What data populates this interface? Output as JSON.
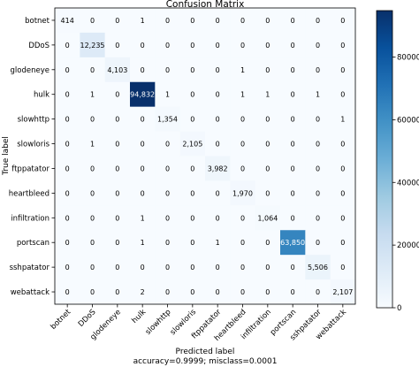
{
  "chart_data": {
    "type": "heatmap",
    "title": "Confusion Matrix",
    "ylabel": "True label",
    "xlabel": "Predicted label",
    "footnote": "accuracy=0.9999; misclass=0.0001",
    "row_labels": [
      "botnet",
      "DDoS",
      "glodeneye",
      "hulk",
      "slowhttp",
      "slowloris",
      "ftppatator",
      "heartbleed",
      "infiltration",
      "portscan",
      "sshpatator",
      "webattack"
    ],
    "col_labels": [
      "botnet",
      "DDoS",
      "glodeneye",
      "hulk",
      "slowhttp",
      "slowloris",
      "ftppatator",
      "heartbleed",
      "infiltration",
      "portscan",
      "sshpatator",
      "webattack"
    ],
    "matrix": [
      [
        414,
        0,
        0,
        1,
        0,
        0,
        0,
        0,
        0,
        0,
        0,
        0
      ],
      [
        0,
        12235,
        0,
        0,
        0,
        0,
        0,
        0,
        0,
        0,
        0,
        0
      ],
      [
        0,
        0,
        4103,
        0,
        0,
        0,
        0,
        1,
        0,
        0,
        0,
        0
      ],
      [
        0,
        1,
        0,
        94832,
        1,
        0,
        0,
        1,
        1,
        0,
        1,
        0
      ],
      [
        0,
        0,
        0,
        0,
        1354,
        0,
        0,
        0,
        0,
        0,
        0,
        1
      ],
      [
        0,
        1,
        0,
        0,
        0,
        2105,
        0,
        0,
        0,
        0,
        0,
        0
      ],
      [
        0,
        0,
        0,
        0,
        0,
        0,
        3982,
        0,
        0,
        0,
        0,
        0
      ],
      [
        0,
        0,
        0,
        0,
        0,
        0,
        0,
        1970,
        0,
        0,
        0,
        0
      ],
      [
        0,
        0,
        0,
        1,
        0,
        0,
        0,
        0,
        1064,
        0,
        0,
        0
      ],
      [
        0,
        0,
        0,
        1,
        0,
        0,
        1,
        0,
        0,
        63850,
        0,
        0
      ],
      [
        0,
        0,
        0,
        0,
        0,
        0,
        0,
        0,
        0,
        0,
        5506,
        0
      ],
      [
        0,
        0,
        0,
        2,
        0,
        0,
        0,
        0,
        0,
        0,
        0,
        2107
      ]
    ],
    "colorbar": {
      "min": 0,
      "max": 94832,
      "ticks": [
        0,
        20000,
        40000,
        60000,
        80000
      ],
      "colormap": "Blues",
      "color_low": "#f7fbff",
      "color_high": "#08306b"
    }
  }
}
